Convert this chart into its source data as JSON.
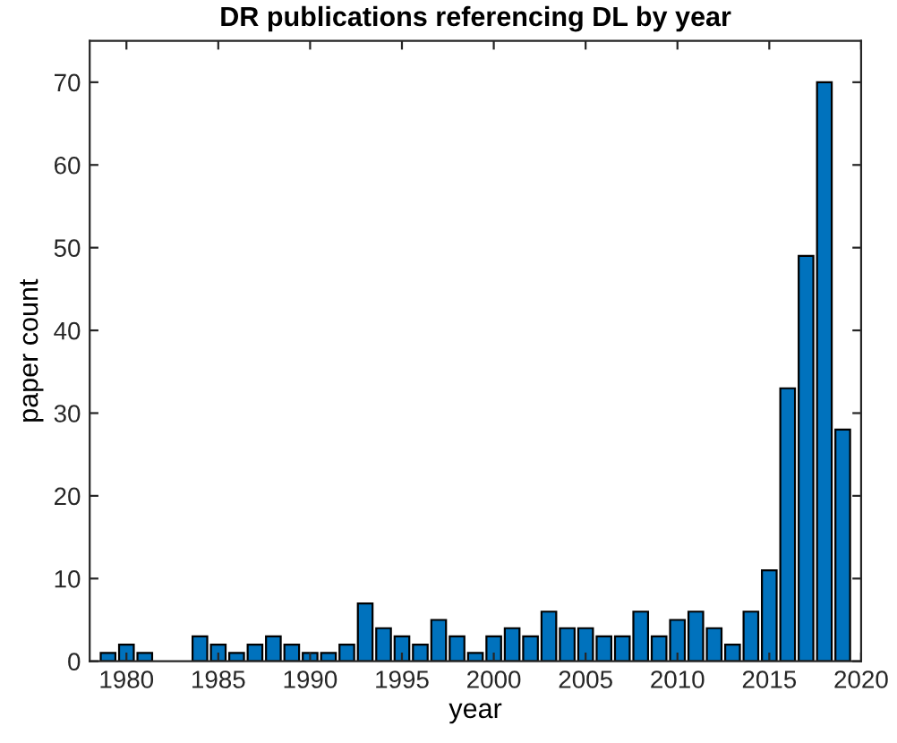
{
  "chart_data": {
    "type": "bar",
    "title": "DR publications referencing DL by year",
    "xlabel": "year",
    "ylabel": "paper count",
    "x": [
      1979,
      1980,
      1981,
      1982,
      1983,
      1984,
      1985,
      1986,
      1987,
      1988,
      1989,
      1990,
      1991,
      1992,
      1993,
      1994,
      1995,
      1996,
      1997,
      1998,
      1999,
      2000,
      2001,
      2002,
      2003,
      2004,
      2005,
      2006,
      2007,
      2008,
      2009,
      2010,
      2011,
      2012,
      2013,
      2014,
      2015,
      2016,
      2017,
      2018,
      2019
    ],
    "values": [
      1,
      2,
      1,
      0,
      0,
      3,
      2,
      1,
      2,
      3,
      2,
      1,
      1,
      2,
      7,
      4,
      3,
      2,
      5,
      3,
      1,
      3,
      4,
      3,
      6,
      4,
      4,
      3,
      3,
      6,
      3,
      5,
      6,
      4,
      2,
      6,
      11,
      33,
      49,
      70,
      28
    ],
    "color": "#0072bd",
    "xlim": [
      1978,
      2020
    ],
    "xticks": [
      1980,
      1985,
      1990,
      1995,
      2000,
      2005,
      2010,
      2015,
      2020
    ],
    "ylim": [
      0,
      75
    ],
    "yticks": [
      0,
      10,
      20,
      30,
      40,
      50,
      60,
      70
    ],
    "grid": false,
    "legend": false
  }
}
